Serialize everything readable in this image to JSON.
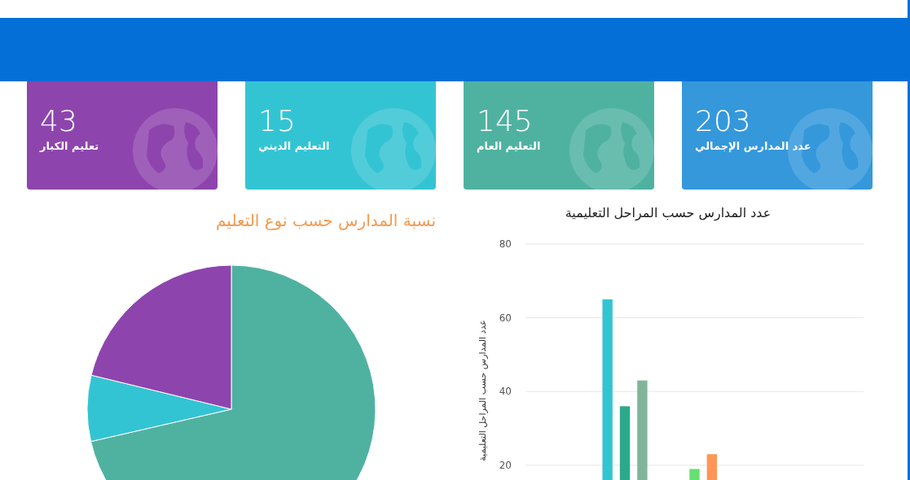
{
  "chart_data": [
    {
      "type": "other",
      "categories": [
        "تعليم الكبار",
        "التعليم الديني",
        "التعليم العام",
        "عدد المدارس الإجمالي"
      ],
      "values": [
        43,
        15,
        145,
        203
      ],
      "colors": [
        "#8e44ad",
        "#33c4d3",
        "#4fb2a1",
        "#3498db"
      ],
      "data_labels": true
    },
    {
      "type": "pie",
      "title": "نسبة المدارس حسب نوع التعليم",
      "categories": [
        null,
        null,
        null
      ],
      "values": [
        71.4,
        7.4,
        21.2
      ],
      "colors": [
        "#4fb2a1",
        "#33c4d3",
        "#8e44ad"
      ]
    },
    {
      "type": "bar",
      "title": "عدد المدارس حسب المراحل التعليمية",
      "ylabel": "عدد المدارس حسب المراحل التعليمية",
      "categories": [
        null,
        null,
        null,
        null,
        null,
        null,
        null,
        null,
        null,
        null,
        null,
        null,
        null,
        null,
        null,
        null,
        null,
        null,
        null
      ],
      "values": [
        null,
        null,
        null,
        null,
        65,
        36,
        43,
        null,
        null,
        19,
        23,
        null,
        null,
        null,
        null,
        null,
        null,
        null,
        null
      ],
      "colors": [
        null,
        null,
        null,
        null,
        "#33c4d3",
        "#2aaa8a",
        "#80b59b",
        null,
        null,
        "#66e070",
        "#ff9655",
        null,
        null,
        null,
        null,
        null,
        null,
        null,
        null
      ],
      "ylim": [
        16,
        80
      ],
      "yticks": [
        20,
        40,
        60,
        80
      ],
      "grid": "y",
      "tick_labels": "y"
    }
  ]
}
